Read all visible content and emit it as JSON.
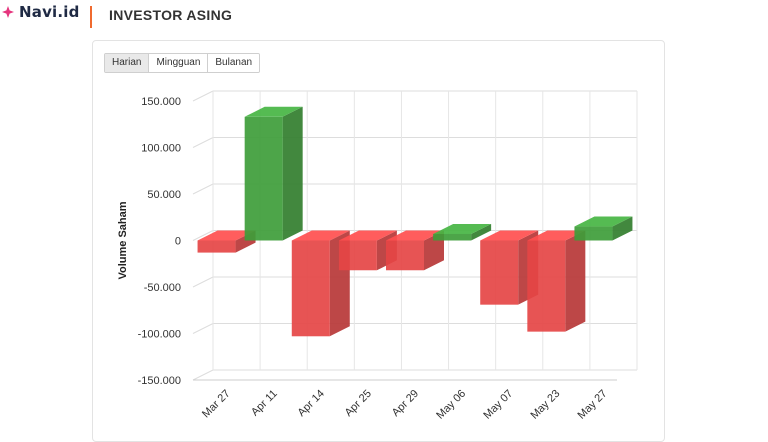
{
  "brand": {
    "name": "Navi.id",
    "accent": "#e5357d"
  },
  "header": {
    "title": "INVESTOR ASING",
    "divider_color": "#f06a2f"
  },
  "tabs": [
    {
      "label": "Harian",
      "active": true
    },
    {
      "label": "Mingguan",
      "active": false
    },
    {
      "label": "Bulanan",
      "active": false
    }
  ],
  "colors": {
    "positive": "#3e9d3a",
    "negative": "#e54545"
  },
  "chart_data": {
    "type": "bar",
    "categories": [
      "Mar 27",
      "Apr 11",
      "Apr 14",
      "Apr 25",
      "Apr 29",
      "May 06",
      "May 07",
      "May 23",
      "May 27"
    ],
    "series": [
      {
        "values": [
          -13000,
          133000,
          -103000,
          -32000,
          -32000,
          7000,
          -69000,
          -98000,
          15000
        ]
      }
    ],
    "ylabel": "Volume Saham",
    "xlabel": "",
    "title": "",
    "ylim": [
      -150000,
      150000
    ],
    "yticks": [
      "150.000",
      "100.000",
      "50.000",
      "0",
      "-50.000",
      "-100.000",
      "-150.000"
    ],
    "ytick_values": [
      150000,
      100000,
      50000,
      0,
      -50000,
      -100000,
      -150000
    ],
    "grid": true,
    "style": "3d-column"
  }
}
